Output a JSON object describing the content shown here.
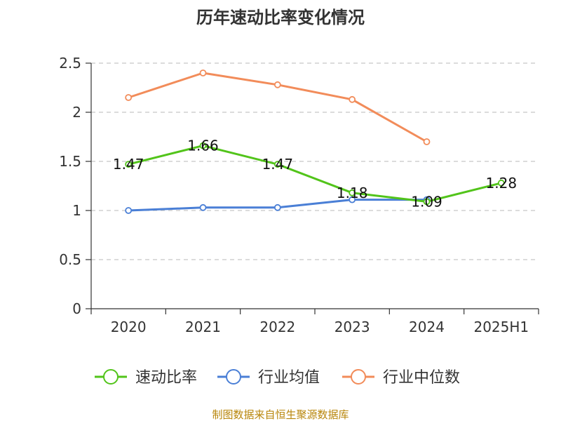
{
  "chart_data": {
    "type": "line",
    "title": "历年速动比率变化情况",
    "categories": [
      "2020",
      "2021",
      "2022",
      "2023",
      "2024",
      "2025H1"
    ],
    "ylim": [
      0,
      2.5
    ],
    "yticks": [
      "0",
      "0.5",
      "1",
      "1.5",
      "2",
      "2.5"
    ],
    "grid": true,
    "legend_position": "bottom",
    "series": [
      {
        "name": "速动比率",
        "color": "#52c41a",
        "values": [
          1.47,
          1.66,
          1.47,
          1.18,
          1.09,
          1.28
        ],
        "labels": [
          "1.47",
          "1.66",
          "1.47",
          "1.18",
          "1.09",
          "1.28"
        ]
      },
      {
        "name": "行业均值",
        "color": "#4a7fd6",
        "values": [
          1.0,
          1.03,
          1.03,
          1.11,
          1.11,
          null
        ]
      },
      {
        "name": "行业中位数",
        "color": "#f28c5a",
        "values": [
          2.15,
          2.4,
          2.28,
          2.13,
          1.7,
          null
        ]
      }
    ]
  },
  "footer": {
    "source": "制图数据来自恒生聚源数据库"
  }
}
